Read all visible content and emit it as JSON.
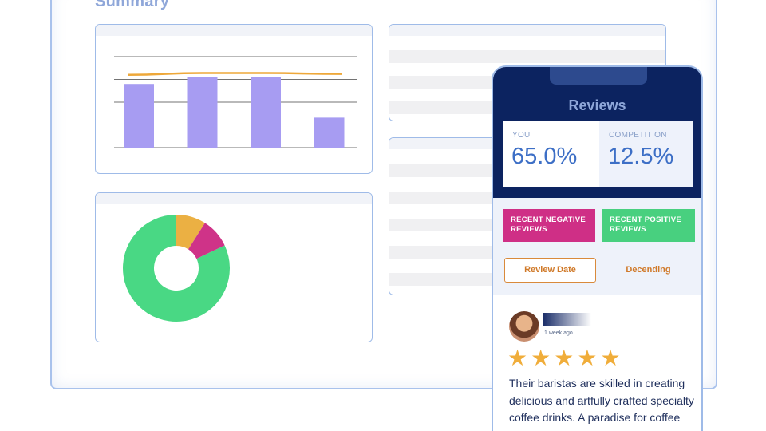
{
  "summary": {
    "title": "Summary"
  },
  "bar_chart": {
    "bars": [
      0.7,
      0.78,
      0.78,
      0.33
    ],
    "trend": [
      0.8,
      0.82,
      0.82,
      0.81
    ],
    "colors": {
      "bar": "#a79cf2",
      "trend": "#eea83a",
      "grid": "#444444"
    }
  },
  "donut_chart": {
    "slices": [
      {
        "value": 82,
        "color": "#49d884"
      },
      {
        "value": 9,
        "color": "#ebb043"
      },
      {
        "value": 9,
        "color": "#cf3388"
      }
    ]
  },
  "reviews": {
    "title": "Reviews",
    "you_label": "YOU",
    "you_value": "65.0%",
    "competition_label": "COMPETITION",
    "competition_value": "12.5%",
    "negative_button": "RECENT NEGATIVE REVIEWS",
    "positive_button": "RECENT POSITIVE REVIEWS",
    "sort_field": "Review Date",
    "sort_order": "Decending",
    "review": {
      "time": "1 week ago",
      "rating": 5,
      "text": "Their baristas are skilled in creating delicious and artfully crafted specialty coffee drinks. A paradise for coffee enthusiasts like me!"
    }
  }
}
